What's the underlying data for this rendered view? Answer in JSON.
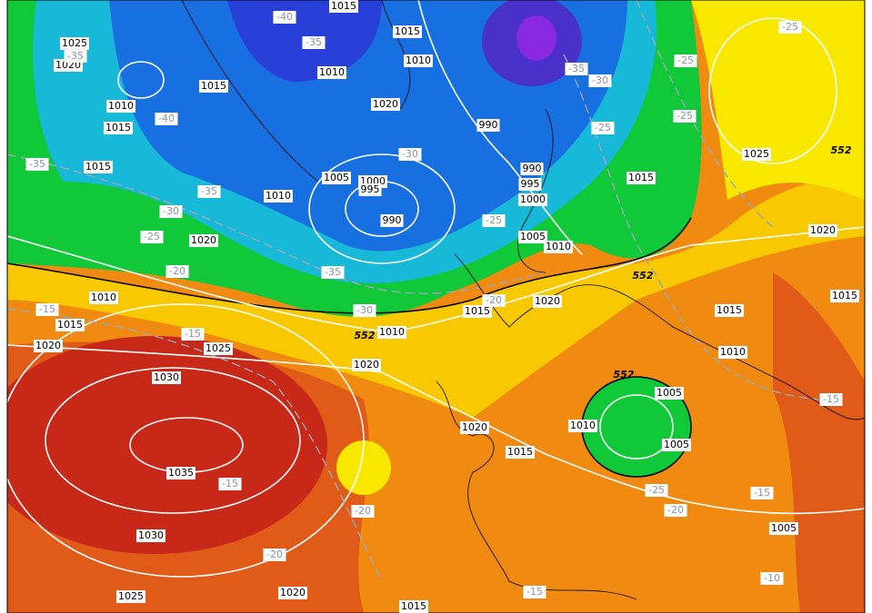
{
  "map": {
    "pressure_labels": [
      "1025",
      "1020",
      "1010",
      "1015",
      "1015",
      "1015",
      "1015",
      "1015",
      "1010",
      "1010",
      "1020",
      "990",
      "990",
      "995",
      "1000",
      "1005",
      "1000",
      "995",
      "990",
      "1010",
      "1020",
      "1005",
      "1010",
      "1015",
      "1025",
      "1020",
      "1010",
      "1015",
      "1020",
      "1025",
      "1030",
      "1035",
      "1030",
      "1025",
      "1020",
      "1010",
      "1015",
      "1020",
      "1015",
      "1015",
      "1010",
      "1005",
      "1005",
      "1010",
      "1020",
      "1015",
      "1005",
      "1020",
      "1015"
    ],
    "temperature_labels": [
      "-40",
      "-35",
      "-35",
      "-40",
      "-35",
      "-35",
      "-30",
      "-25",
      "-20",
      "-15",
      "-15",
      "-30",
      "-25",
      "-35",
      "-30",
      "-35",
      "-30",
      "-25",
      "-25",
      "-25",
      "-25",
      "-20",
      "-15",
      "-20",
      "-20",
      "-25",
      "-20",
      "-15",
      "-15",
      "-10",
      "-15"
    ],
    "height_labels": [
      "552",
      "552",
      "552",
      "552"
    ]
  }
}
